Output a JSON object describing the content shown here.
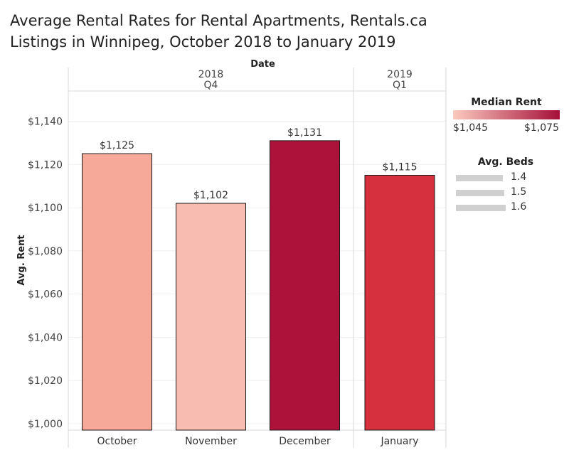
{
  "title": {
    "line1": "Average Rental Rates for Rental Apartments, Rentals.ca",
    "line2": "Listings in Winnipeg, October 2018 to January 2019"
  },
  "chart_data": {
    "type": "bar",
    "column_header": "Date",
    "groups": [
      {
        "year": "2018",
        "quarter": "Q4",
        "categories": [
          "October",
          "November",
          "December"
        ]
      },
      {
        "year": "2019",
        "quarter": "Q1",
        "categories": [
          "January"
        ]
      }
    ],
    "categories": [
      "October",
      "November",
      "December",
      "January"
    ],
    "values": [
      1125,
      1102,
      1131,
      1115
    ],
    "value_labels": [
      "$1,125",
      "$1,102",
      "$1,131",
      "$1,115"
    ],
    "bar_colors": [
      "#f6a899",
      "#f8bcb0",
      "#ad133a",
      "#d6303f"
    ],
    "ylabel": "Avg. Rent",
    "ylim": [
      997,
      1154
    ],
    "yticks": [
      1000,
      1020,
      1040,
      1060,
      1080,
      1100,
      1120,
      1140
    ],
    "ytick_labels": [
      "$1,000",
      "$1,020",
      "$1,040",
      "$1,060",
      "$1,080",
      "$1,100",
      "$1,120",
      "$1,140"
    ],
    "grid": true,
    "legend_color": {
      "title": "Median Rent",
      "min_label": "$1,045",
      "max_label": "$1,075",
      "min_color": "#fbcabe",
      "max_color": "#a50f38"
    },
    "legend_size": {
      "title": "Avg. Beds",
      "items": [
        "1.4",
        "1.5",
        "1.6"
      ],
      "color": "#d0d0d0"
    }
  }
}
